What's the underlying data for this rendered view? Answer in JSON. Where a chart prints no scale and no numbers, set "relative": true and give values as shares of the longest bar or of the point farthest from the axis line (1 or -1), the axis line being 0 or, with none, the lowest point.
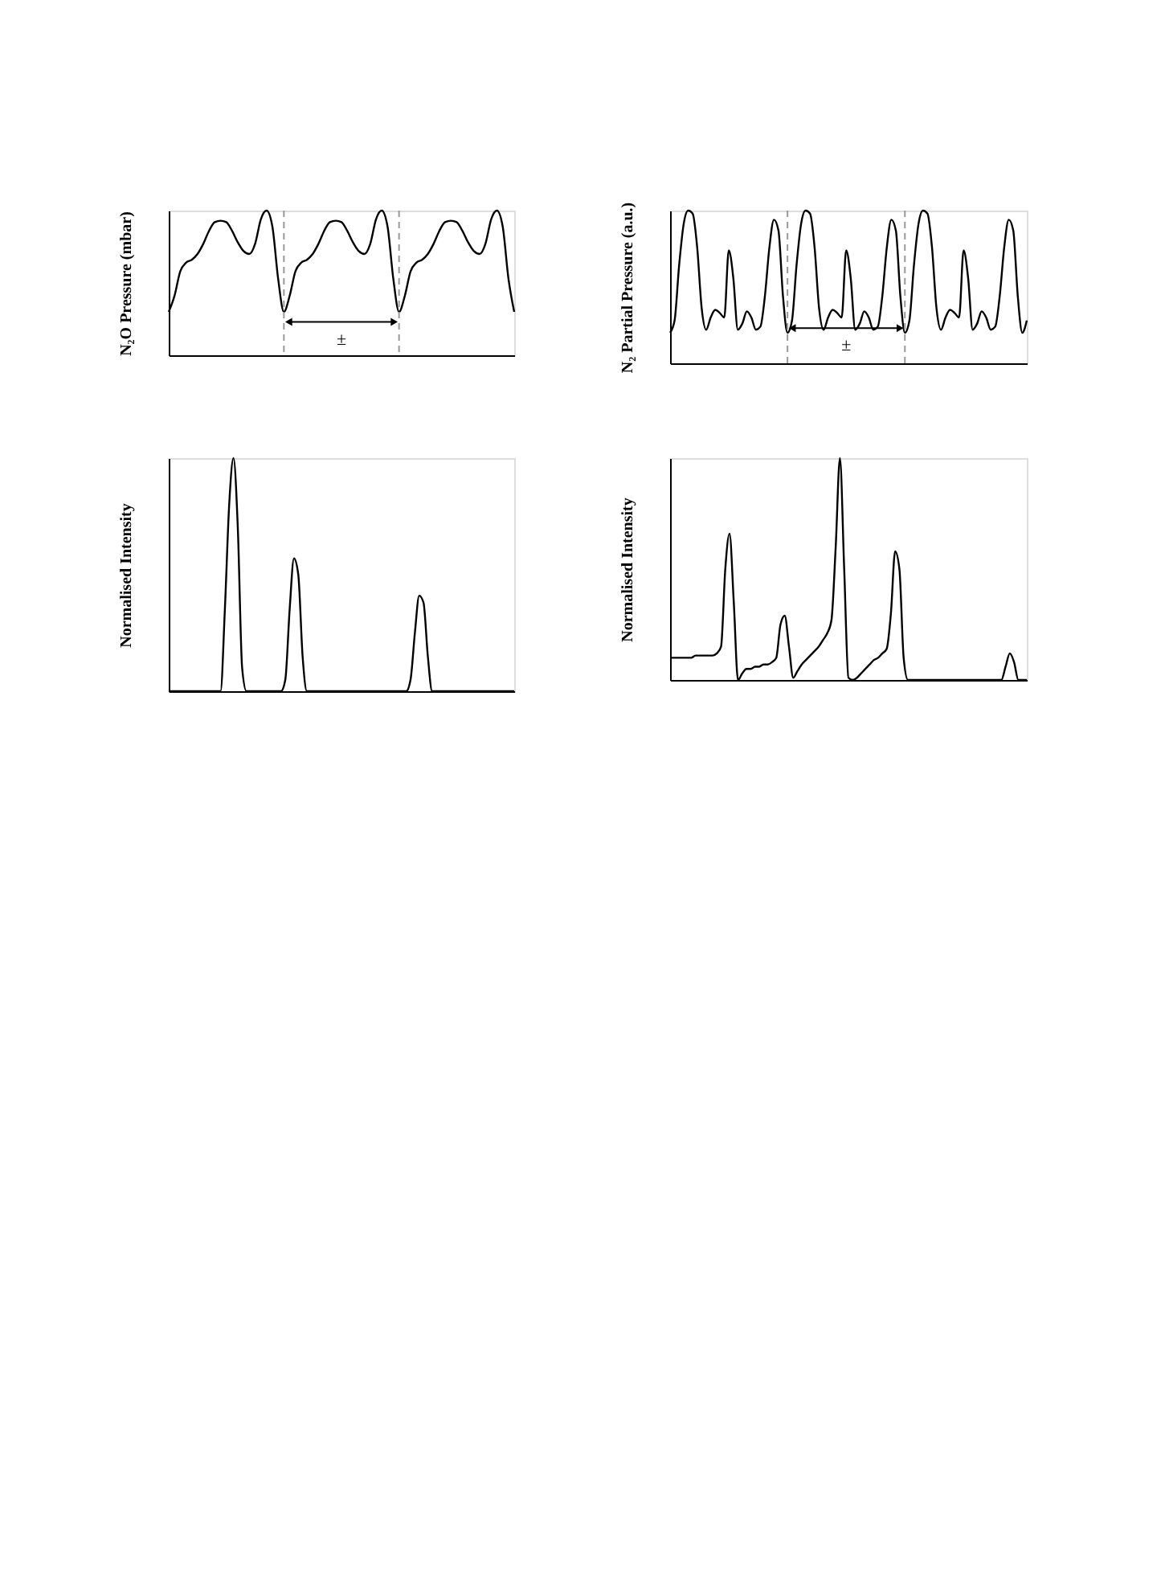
{
  "chart_data": [
    {
      "type": "line",
      "relative": true,
      "ylabel": "N₂O Pressure (mbar)",
      "annotations": [
        "±"
      ],
      "categories": [
        null,
        null,
        null,
        null,
        null,
        null,
        null,
        null,
        null,
        null,
        null,
        null,
        null,
        null,
        null,
        null,
        null,
        null,
        null,
        null,
        null,
        null,
        null,
        null,
        null,
        null,
        null,
        null,
        null,
        null,
        null,
        null,
        null,
        null,
        null,
        null,
        null,
        null,
        null,
        null,
        null,
        null,
        null,
        null,
        null,
        null,
        null,
        null,
        null,
        null,
        null,
        null,
        null,
        null,
        null,
        null,
        null,
        null,
        null,
        null,
        null
      ],
      "series": [
        {
          "color": "#000000",
          "values": [
            0.3,
            0.41,
            0.58,
            0.64,
            0.66,
            0.7,
            0.77,
            0.86,
            0.92,
            0.93,
            0.92,
            0.86,
            0.78,
            0.72,
            0.7,
            0.77,
            0.94,
            1.0,
            0.89,
            0.53,
            0.3,
            0.41,
            0.58,
            0.64,
            0.66,
            0.7,
            0.77,
            0.86,
            0.92,
            0.93,
            0.92,
            0.86,
            0.78,
            0.72,
            0.7,
            0.77,
            0.94,
            1.0,
            0.89,
            0.53,
            0.3,
            0.41,
            0.58,
            0.64,
            0.66,
            0.7,
            0.77,
            0.86,
            0.92,
            0.93,
            0.92,
            0.86,
            0.78,
            0.72,
            0.7,
            0.77,
            0.94,
            1.0,
            0.89,
            0.53,
            0.3
          ]
        }
      ]
    },
    {
      "type": "line",
      "relative": true,
      "ylabel": "N₂ Partial Pressure (a.u.)",
      "annotations": [
        "±"
      ],
      "categories": [
        null,
        null,
        null,
        null,
        null,
        null,
        null,
        null,
        null,
        null,
        null,
        null,
        null,
        null,
        null,
        null,
        null,
        null,
        null,
        null,
        null,
        null,
        null,
        null,
        null,
        null,
        null,
        null,
        null,
        null,
        null,
        null,
        null,
        null,
        null,
        null,
        null,
        null,
        null,
        null,
        null,
        null,
        null,
        null,
        null,
        null,
        null,
        null,
        null,
        null,
        null,
        null,
        null,
        null,
        null,
        null,
        null,
        null,
        null,
        null,
        null,
        null,
        null,
        null,
        null,
        null,
        null,
        null,
        null,
        null,
        null,
        null,
        null,
        null,
        null,
        null,
        null,
        null,
        null,
        null
      ],
      "series": [
        {
          "color": "#000000",
          "values": [
            0.2,
            0.28,
            0.64,
            0.91,
            1.0,
            0.98,
            0.76,
            0.36,
            0.22,
            0.3,
            0.35,
            0.33,
            0.3,
            0.74,
            0.56,
            0.22,
            0.26,
            0.34,
            0.3,
            0.22,
            0.24,
            0.44,
            0.76,
            0.94,
            0.87,
            0.44,
            0.2,
            0.28,
            0.64,
            0.91,
            1.0,
            0.98,
            0.76,
            0.36,
            0.22,
            0.3,
            0.35,
            0.33,
            0.3,
            0.74,
            0.56,
            0.22,
            0.26,
            0.34,
            0.3,
            0.22,
            0.24,
            0.44,
            0.76,
            0.94,
            0.87,
            0.44,
            0.2,
            0.28,
            0.64,
            0.91,
            1.0,
            0.98,
            0.76,
            0.36,
            0.22,
            0.3,
            0.35,
            0.33,
            0.3,
            0.74,
            0.56,
            0.22,
            0.26,
            0.34,
            0.3,
            0.22,
            0.24,
            0.44,
            0.76,
            0.94,
            0.87,
            0.44,
            0.2,
            0.28
          ]
        }
      ]
    },
    {
      "type": "line",
      "relative": true,
      "ylabel": "Normalised Intensity",
      "categories": [
        null,
        null,
        null,
        null,
        null,
        null,
        null,
        null,
        null,
        null,
        null,
        null,
        null,
        null,
        null,
        null,
        null,
        null,
        null,
        null,
        null,
        null,
        null,
        null,
        null,
        null,
        null,
        null,
        null,
        null,
        null,
        null,
        null,
        null,
        null,
        null,
        null,
        null,
        null,
        null,
        null,
        null,
        null,
        null,
        null,
        null,
        null,
        null,
        null,
        null,
        null,
        null,
        null,
        null,
        null,
        null,
        null,
        null,
        null,
        null,
        null,
        null,
        null,
        null,
        null,
        null,
        null,
        null,
        null,
        null,
        null,
        null,
        null,
        null,
        null,
        null,
        null,
        null,
        null,
        null,
        null
      ],
      "series": [
        {
          "color": "#000000",
          "values": [
            0,
            0,
            0,
            0,
            0,
            0,
            0,
            0,
            0,
            0,
            0,
            0,
            0,
            0.35,
            0.8,
            1.0,
            0.7,
            0.1,
            0,
            0,
            0,
            0,
            0,
            0,
            0,
            0,
            0,
            0.05,
            0.35,
            0.57,
            0.5,
            0.15,
            0,
            0,
            0,
            0,
            0,
            0,
            0,
            0,
            0,
            0,
            0,
            0,
            0,
            0,
            0,
            0,
            0,
            0,
            0,
            0,
            0,
            0,
            0,
            0,
            0.05,
            0.25,
            0.41,
            0.38,
            0.15,
            0,
            0,
            0,
            0,
            0,
            0,
            0,
            0,
            0,
            0,
            0,
            0,
            0,
            0,
            0,
            0,
            0,
            0,
            0,
            0
          ]
        }
      ]
    },
    {
      "type": "line",
      "relative": true,
      "ylabel": "Normalised Intensity",
      "categories": [
        null,
        null,
        null,
        null,
        null,
        null,
        null,
        null,
        null,
        null,
        null,
        null,
        null,
        null,
        null,
        null,
        null,
        null,
        null,
        null,
        null,
        null,
        null,
        null,
        null,
        null,
        null,
        null,
        null,
        null,
        null,
        null,
        null,
        null,
        null,
        null,
        null,
        null,
        null,
        null,
        null,
        null,
        null,
        null,
        null,
        null,
        null,
        null,
        null,
        null,
        null,
        null,
        null,
        null,
        null,
        null,
        null,
        null,
        null,
        null,
        null,
        null,
        null,
        null,
        null,
        null,
        null,
        null,
        null,
        null,
        null,
        null,
        null,
        null,
        null,
        null,
        null,
        null,
        null,
        null,
        null,
        null,
        null,
        null,
        null
      ],
      "series": [
        {
          "color": "#000000",
          "values": [
            0.1,
            0.1,
            0.1,
            0.1,
            0.1,
            0.1,
            0.11,
            0.11,
            0.11,
            0.11,
            0.11,
            0.12,
            0.15,
            0.5,
            0.66,
            0.35,
            0.0,
            0.03,
            0.05,
            0.05,
            0.06,
            0.06,
            0.07,
            0.07,
            0.08,
            0.1,
            0.25,
            0.29,
            0.15,
            0.01,
            0.04,
            0.07,
            0.09,
            0.11,
            0.13,
            0.15,
            0.18,
            0.21,
            0.27,
            0.6,
            1.0,
            0.5,
            0.01,
            0.0,
            0.01,
            0.03,
            0.05,
            0.07,
            0.09,
            0.1,
            0.12,
            0.14,
            0.3,
            0.58,
            0.5,
            0.1,
            0,
            0,
            0,
            0,
            0,
            0,
            0,
            0,
            0,
            0,
            0,
            0,
            0,
            0,
            0,
            0,
            0,
            0,
            0,
            0,
            0,
            0,
            0,
            0.06,
            0.12,
            0.08,
            0,
            0,
            0
          ]
        }
      ]
    }
  ]
}
